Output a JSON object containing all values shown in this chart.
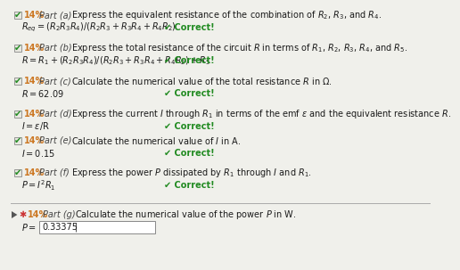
{
  "bg_color": "#f0f0eb",
  "text_color": "#1a1a1a",
  "percent_color": "#cc7722",
  "correct_color": "#228B22",
  "check_color": "#228B22",
  "input_box_color": "#ffffff",
  "input_border_color": "#888888",
  "separator_color": "#aaaaaa",
  "parts": [
    {
      "row1_left": "14%",
      "row1_part": "Part (a)",
      "row1_q": "Express the equivalent resistance of the combination of $R_2$, $R_3$, and $R_4$.",
      "row2": "$R_{eq} = (R_2 R_3 R_4)/(R_2 R_3 + R_3 R_4 + R_4 R_2)$",
      "correct": true,
      "active": false,
      "completed": true
    },
    {
      "row1_left": "14%",
      "row1_part": "Part (b)",
      "row1_q": "Express the total resistance of the circuit $R$ in terms of $R_1$, $R_2$, $R_3$, $R_4$, and $R_5$.",
      "row2": "$R = R_1 + (R_2 R_3 R_4)/(R_2 R_3 + R_3 R_4 + R_4 R_2) + R_5$",
      "correct": true,
      "active": false,
      "completed": true
    },
    {
      "row1_left": "14%",
      "row1_part": "Part (c)",
      "row1_q": "Calculate the numerical value of the total resistance $R$ in Ω.",
      "row2": "$R = 62.09$",
      "correct": true,
      "active": false,
      "completed": true
    },
    {
      "row1_left": "14%",
      "row1_part": "Part (d)",
      "row1_q": "Express the current $I$ through $R_1$ in terms of the emf $\\varepsilon$ and the equivalent resistance $R$.",
      "row2": "$I = \\varepsilon$/R",
      "correct": true,
      "active": false,
      "completed": true
    },
    {
      "row1_left": "14%",
      "row1_part": "Part (e)",
      "row1_q": "Calculate the numerical value of $I$ in A.",
      "row2": "$I = 0.15$",
      "correct": true,
      "active": false,
      "completed": true
    },
    {
      "row1_left": "14%",
      "row1_part": "Part (f)",
      "row1_q": "Express the power $P$ dissipated by $R_1$ through $I$ and $R_1$.",
      "row2": "$P = I^2 R_1$",
      "correct": true,
      "active": false,
      "completed": true
    },
    {
      "row1_left": "14%",
      "row1_part": "Part (g)",
      "row1_q": "Calculate the numerical value of the power $P$ in W.",
      "row2": "$P = $",
      "input_val": "0.33375",
      "correct": false,
      "active": true,
      "completed": false
    }
  ],
  "fontsize": 7.0,
  "answer_fontsize": 7.0
}
